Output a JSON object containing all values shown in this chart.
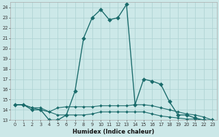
{
  "xlabel": "Humidex (Indice chaleur)",
  "bg_color": "#cce8e8",
  "grid_color": "#b0d4d4",
  "line_color": "#1a6b6b",
  "xlim": [
    -0.5,
    23.5
  ],
  "ylim": [
    13,
    24.5
  ],
  "yticks": [
    13,
    14,
    15,
    16,
    17,
    18,
    19,
    20,
    21,
    22,
    23,
    24
  ],
  "xticks": [
    0,
    1,
    2,
    3,
    4,
    5,
    6,
    7,
    8,
    9,
    10,
    11,
    12,
    13,
    14,
    15,
    16,
    17,
    18,
    19,
    20,
    21,
    22,
    23
  ],
  "series": [
    [
      14.5,
      14.5,
      14.0,
      14.0,
      13.0,
      13.0,
      13.5,
      15.8,
      21.0,
      23.0,
      23.8,
      22.8,
      23.0,
      24.3,
      14.5,
      17.0,
      16.8,
      16.5,
      14.8,
      13.5,
      13.5,
      13.2,
      13.0,
      13.0
    ],
    [
      14.5,
      14.5,
      14.2,
      14.2,
      13.8,
      14.2,
      14.3,
      14.3,
      14.3,
      14.3,
      14.4,
      14.4,
      14.4,
      14.4,
      14.5,
      14.5,
      14.4,
      14.2,
      14.0,
      13.8,
      13.6,
      13.5,
      13.3,
      13.0
    ],
    [
      14.5,
      14.5,
      14.2,
      14.0,
      13.8,
      13.5,
      13.5,
      13.5,
      13.5,
      13.6,
      13.8,
      13.8,
      13.8,
      13.8,
      13.8,
      13.8,
      13.6,
      13.4,
      13.3,
      13.2,
      13.1,
      13.1,
      13.0,
      13.0
    ]
  ]
}
